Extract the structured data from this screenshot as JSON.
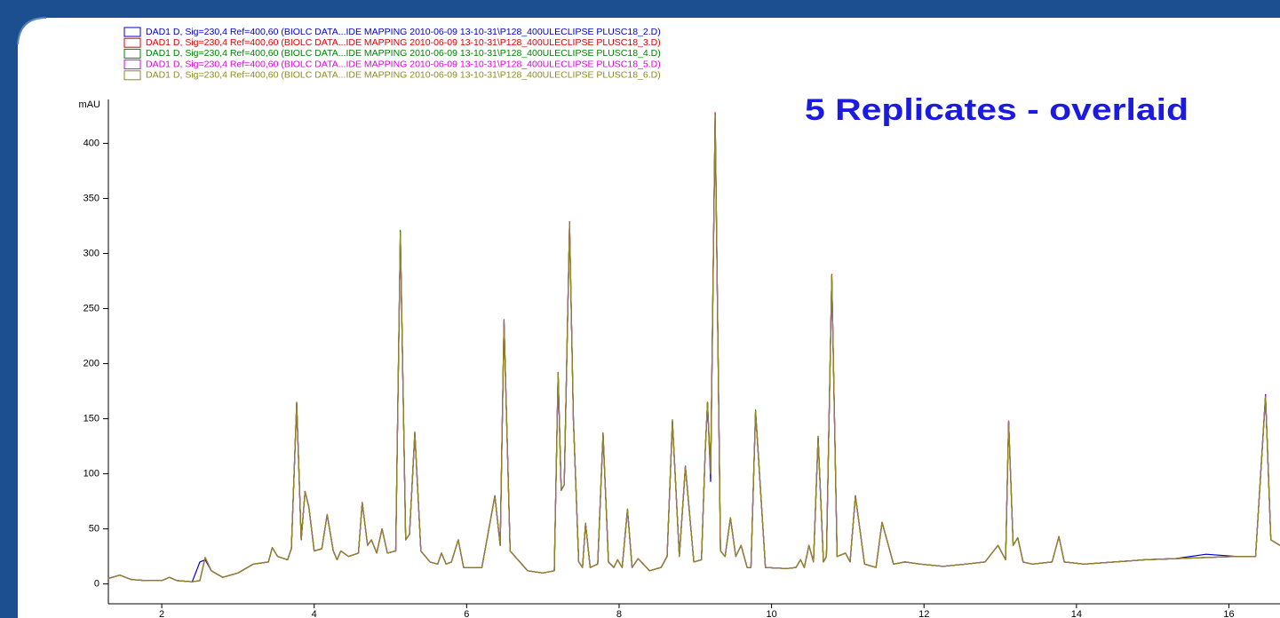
{
  "chart_data": {
    "type": "line",
    "title": "5 Replicates - overlaid",
    "y_label": "mAU",
    "x": [
      1.3,
      1.45,
      1.6,
      1.8,
      2.0,
      2.1,
      2.2,
      2.4,
      2.5,
      2.57,
      2.65,
      2.8,
      3.0,
      3.2,
      3.4,
      3.45,
      3.52,
      3.65,
      3.7,
      3.77,
      3.83,
      3.88,
      3.93,
      4.0,
      4.1,
      4.17,
      4.25,
      4.3,
      4.35,
      4.45,
      4.58,
      4.63,
      4.7,
      4.75,
      4.82,
      4.89,
      4.96,
      5.07,
      5.13,
      5.2,
      5.25,
      5.32,
      5.4,
      5.52,
      5.62,
      5.67,
      5.73,
      5.8,
      5.89,
      5.96,
      6.2,
      6.37,
      6.44,
      6.49,
      6.57,
      6.8,
      7.0,
      7.15,
      7.2,
      7.24,
      7.28,
      7.35,
      7.4,
      7.47,
      7.52,
      7.56,
      7.62,
      7.72,
      7.79,
      7.86,
      7.93,
      7.98,
      8.04,
      8.11,
      8.17,
      8.25,
      8.4,
      8.55,
      8.63,
      8.7,
      8.79,
      8.87,
      8.98,
      9.08,
      9.13,
      9.16,
      9.2,
      9.26,
      9.33,
      9.39,
      9.46,
      9.53,
      9.6,
      9.68,
      9.73,
      9.79,
      9.92,
      10.2,
      10.32,
      10.38,
      10.43,
      10.49,
      10.55,
      10.61,
      10.68,
      10.72,
      10.79,
      10.86,
      10.97,
      11.03,
      11.1,
      11.22,
      11.37,
      11.45,
      11.6,
      11.75,
      11.95,
      12.25,
      12.55,
      12.8,
      12.97,
      13.07,
      13.11,
      13.17,
      13.23,
      13.3,
      13.42,
      13.68,
      13.77,
      13.84,
      14.1,
      14.5,
      14.9,
      15.3,
      15.7,
      16.1,
      16.35,
      16.48,
      16.55,
      16.67
    ],
    "series": [
      {
        "name": "DAD1 D, Sig=230,4 Ref=400,60 (BIOLC DATA...IDE MAPPING 2010-06-09 13-10-31\\P128_400ULECLIPSE PLUSC18_2.D)",
        "color": "#0000cc",
        "values": [
          5,
          8,
          4,
          3,
          3,
          6,
          3,
          2,
          20,
          22,
          12,
          6,
          10,
          18,
          20,
          33,
          25,
          22,
          32,
          163,
          40,
          84,
          70,
          30,
          32,
          63,
          30,
          22,
          30,
          25,
          28,
          74,
          35,
          40,
          28,
          50,
          28,
          30,
          318,
          40,
          45,
          136,
          30,
          20,
          18,
          28,
          18,
          20,
          40,
          15,
          15,
          80,
          35,
          238,
          30,
          12,
          10,
          12,
          190,
          85,
          90,
          326,
          150,
          20,
          15,
          55,
          15,
          18,
          135,
          20,
          15,
          22,
          15,
          67,
          15,
          23,
          12,
          15,
          25,
          147,
          25,
          106,
          20,
          22,
          120,
          165,
          93,
          424,
          30,
          25,
          60,
          25,
          35,
          15,
          15,
          156,
          15,
          14,
          15,
          22,
          15,
          35,
          20,
          132,
          20,
          25,
          279,
          25,
          28,
          20,
          80,
          18,
          15,
          56,
          18,
          20,
          18,
          16,
          18,
          20,
          35,
          22,
          147,
          35,
          42,
          20,
          18,
          20,
          43,
          20,
          18,
          20,
          22,
          23,
          27,
          25,
          25,
          172,
          40,
          35
        ]
      },
      {
        "name": "DAD1 D, Sig=230,4 Ref=400,60 (BIOLC DATA...IDE MAPPING 2010-06-09 13-10-31\\P128_400ULECLIPSE PLUSC18_3.D)",
        "color": "#e00000",
        "values": [
          5,
          8,
          4,
          3,
          3,
          6,
          3,
          2,
          3,
          24,
          12,
          6,
          10,
          18,
          20,
          33,
          25,
          22,
          32,
          165,
          40,
          84,
          70,
          30,
          32,
          63,
          30,
          22,
          30,
          25,
          28,
          74,
          35,
          40,
          28,
          50,
          28,
          30,
          319,
          40,
          45,
          138,
          30,
          20,
          18,
          28,
          18,
          20,
          40,
          15,
          15,
          80,
          35,
          239,
          30,
          12,
          10,
          12,
          192,
          85,
          90,
          328,
          150,
          20,
          15,
          55,
          15,
          18,
          137,
          20,
          15,
          22,
          15,
          68,
          15,
          23,
          12,
          15,
          25,
          148,
          25,
          107,
          20,
          22,
          120,
          165,
          100,
          428,
          30,
          25,
          60,
          25,
          35,
          15,
          15,
          157,
          15,
          14,
          15,
          22,
          15,
          35,
          20,
          133,
          20,
          25,
          281,
          25,
          28,
          20,
          80,
          18,
          15,
          56,
          18,
          20,
          18,
          16,
          18,
          20,
          35,
          22,
          148,
          35,
          42,
          20,
          18,
          20,
          43,
          20,
          18,
          20,
          22,
          23,
          24,
          25,
          25,
          170,
          40,
          35
        ]
      },
      {
        "name": "DAD1 D, Sig=230,4 Ref=400,60 (BIOLC DATA...IDE MAPPING 2010-06-09 13-10-31\\P128_400ULECLIPSE PLUSC18_4.D)",
        "color": "#008000",
        "values": [
          5,
          8,
          4,
          3,
          3,
          6,
          3,
          2,
          3,
          24,
          12,
          6,
          10,
          18,
          20,
          33,
          25,
          22,
          32,
          164,
          40,
          84,
          70,
          30,
          32,
          63,
          30,
          22,
          30,
          25,
          28,
          74,
          35,
          40,
          28,
          50,
          28,
          30,
          321,
          40,
          45,
          137,
          30,
          20,
          18,
          28,
          18,
          20,
          40,
          15,
          15,
          80,
          35,
          239,
          30,
          12,
          10,
          12,
          192,
          85,
          90,
          327,
          150,
          20,
          15,
          55,
          15,
          18,
          137,
          20,
          15,
          22,
          15,
          68,
          15,
          23,
          12,
          15,
          25,
          149,
          25,
          107,
          20,
          22,
          120,
          165,
          100,
          426,
          30,
          25,
          60,
          25,
          35,
          15,
          15,
          158,
          15,
          14,
          15,
          22,
          15,
          35,
          20,
          134,
          20,
          25,
          280,
          25,
          28,
          20,
          80,
          18,
          15,
          56,
          18,
          20,
          18,
          16,
          18,
          20,
          35,
          22,
          148,
          35,
          42,
          20,
          18,
          20,
          43,
          20,
          18,
          20,
          22,
          23,
          24,
          25,
          25,
          170,
          40,
          35
        ]
      },
      {
        "name": "DAD1 D, Sig=230,4 Ref=400,60 (BIOLC DATA...IDE MAPPING 2010-06-09 13-10-31\\P128_400ULECLIPSE PLUSC18_5.D)",
        "color": "#e000e0",
        "values": [
          5,
          8,
          4,
          3,
          3,
          6,
          3,
          2,
          3,
          24,
          12,
          6,
          10,
          18,
          20,
          33,
          25,
          22,
          32,
          165,
          40,
          84,
          70,
          30,
          32,
          63,
          30,
          22,
          30,
          25,
          28,
          74,
          35,
          40,
          28,
          50,
          28,
          30,
          317,
          40,
          45,
          138,
          30,
          20,
          18,
          28,
          18,
          20,
          40,
          15,
          15,
          80,
          35,
          240,
          30,
          12,
          10,
          12,
          192,
          85,
          90,
          329,
          150,
          20,
          15,
          55,
          15,
          18,
          137,
          20,
          15,
          22,
          15,
          68,
          15,
          23,
          12,
          15,
          25,
          148,
          25,
          107,
          20,
          22,
          120,
          165,
          100,
          425,
          30,
          25,
          60,
          25,
          35,
          15,
          15,
          157,
          15,
          14,
          15,
          22,
          15,
          35,
          20,
          133,
          20,
          25,
          280,
          25,
          28,
          20,
          80,
          18,
          15,
          56,
          18,
          20,
          18,
          16,
          18,
          20,
          35,
          22,
          148,
          35,
          42,
          20,
          18,
          20,
          43,
          20,
          18,
          20,
          22,
          23,
          24,
          25,
          25,
          171,
          40,
          35
        ]
      },
      {
        "name": "DAD1 D, Sig=230,4 Ref=400,60 (BIOLC DATA...IDE MAPPING 2010-06-09 13-10-31\\P128_400ULECLIPSE PLUSC18_6.D)",
        "color": "#8c8c20",
        "values": [
          5,
          8,
          4,
          3,
          3,
          6,
          3,
          2,
          3,
          24,
          12,
          6,
          10,
          18,
          20,
          33,
          25,
          22,
          32,
          165,
          40,
          84,
          70,
          30,
          32,
          63,
          30,
          22,
          30,
          25,
          28,
          74,
          35,
          40,
          28,
          50,
          28,
          30,
          319,
          40,
          45,
          138,
          30,
          20,
          18,
          28,
          18,
          20,
          40,
          15,
          15,
          80,
          35,
          239,
          30,
          12,
          10,
          12,
          192,
          85,
          90,
          328,
          150,
          20,
          15,
          55,
          15,
          18,
          137,
          20,
          15,
          22,
          15,
          68,
          15,
          23,
          12,
          15,
          25,
          148,
          25,
          107,
          20,
          22,
          120,
          165,
          100,
          425,
          30,
          25,
          60,
          25,
          35,
          15,
          15,
          157,
          15,
          14,
          15,
          22,
          15,
          35,
          20,
          133,
          20,
          25,
          280,
          25,
          28,
          20,
          80,
          18,
          15,
          56,
          18,
          20,
          18,
          16,
          18,
          20,
          35,
          22,
          148,
          35,
          42,
          20,
          18,
          20,
          43,
          20,
          18,
          20,
          22,
          23,
          24,
          25,
          25,
          170,
          40,
          35
        ]
      }
    ],
    "xlim": [
      1.3,
      16.67
    ],
    "ylim": [
      -18,
      435
    ],
    "xticks": [
      2,
      4,
      6,
      8,
      10,
      12,
      14,
      16
    ],
    "yticks": [
      0,
      50,
      100,
      150,
      200,
      250,
      300,
      350,
      400
    ],
    "grid": false,
    "legend": "top-left"
  }
}
